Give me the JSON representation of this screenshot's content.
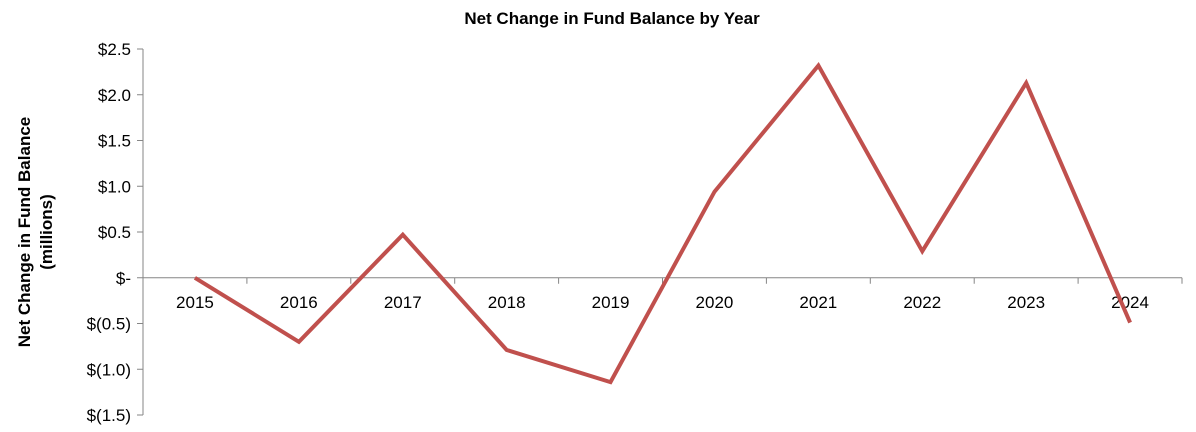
{
  "chart_data": {
    "type": "line",
    "title": "Net Change in Fund Balance by Year",
    "ylabel_line1": "Net Change in Fund Balance",
    "ylabel_line2": "(millions)",
    "xlabel": "",
    "categories": [
      "2015",
      "2016",
      "2017",
      "2018",
      "2019",
      "2020",
      "2021",
      "2022",
      "2023",
      "2024"
    ],
    "series": [
      {
        "values": [
          0.0,
          -0.7,
          0.47,
          -0.79,
          -1.14,
          0.94,
          2.32,
          0.29,
          2.13,
          -0.49
        ],
        "color": "#C0504D"
      }
    ],
    "ylim": [
      -1.5,
      2.5
    ],
    "yticks": [
      2.5,
      2.0,
      1.5,
      1.0,
      0.5,
      0,
      -0.5,
      -1.0,
      -1.5
    ],
    "ytick_labels": [
      "$2.5",
      "$2.0",
      "$1.5",
      "$1.0",
      "$0.5",
      "$-",
      "$(0.5)",
      "$(1.0)",
      "$(1.5)"
    ],
    "grid": false,
    "legend": "none"
  }
}
